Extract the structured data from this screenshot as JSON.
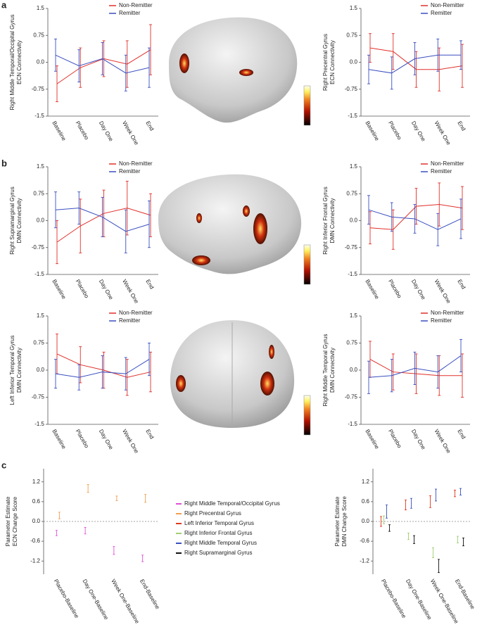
{
  "chart_data": [
    {
      "type": "line",
      "panel": "a",
      "ylabel": [
        "Right Middle Temporal/Occipital Gyrus",
        "ECN Connectivity"
      ],
      "categories": [
        "Baseline",
        "Placebo",
        "Day One",
        "Week One",
        "End"
      ],
      "ylim": [
        -1.5,
        1.5
      ],
      "yticks": [
        -1.5,
        -0.75,
        {
          "value": 0,
          "label": "0.0"
        },
        0.75,
        1.5
      ],
      "series": [
        {
          "name": "Non-Remitter",
          "color": "#e0302a",
          "values": [
            -0.6,
            -0.15,
            0.1,
            -0.05,
            0.35
          ],
          "errors": [
            0.5,
            0.55,
            0.5,
            0.65,
            0.7
          ]
        },
        {
          "name": "Remitter",
          "color": "#3a4fc0",
          "values": [
            0.2,
            -0.1,
            0.1,
            -0.3,
            -0.15
          ],
          "errors": [
            0.45,
            0.45,
            0.45,
            0.5,
            0.55
          ]
        }
      ]
    },
    {
      "type": "line",
      "ylabel": [
        "Right Precentral Gyrus",
        "ECN Connectivity"
      ],
      "categories": [
        "Baseline",
        "Placebo",
        "Day One",
        "Week One",
        "End"
      ],
      "ylim": [
        -1.5,
        1.5
      ],
      "yticks": [
        -1.5,
        -0.75,
        {
          "value": 0,
          "label": "0.0"
        },
        0.75,
        1.5
      ],
      "series": [
        {
          "name": "Non-Remitter",
          "color": "#e0302a",
          "values": [
            0.4,
            0.3,
            -0.2,
            -0.2,
            -0.1
          ],
          "errors": [
            0.4,
            0.5,
            0.5,
            0.6,
            0.6
          ]
        },
        {
          "name": "Remitter",
          "color": "#3a4fc0",
          "values": [
            -0.2,
            -0.3,
            0.1,
            0.2,
            0.2
          ],
          "errors": [
            0.4,
            0.45,
            0.45,
            0.45,
            0.4
          ]
        }
      ]
    },
    {
      "type": "line",
      "panel": "b",
      "ylabel": [
        "Right Supramarginal Gyrus",
        "DMN Connectivity"
      ],
      "categories": [
        "Baseline",
        "Placebo",
        "Day One",
        "Week One",
        "End"
      ],
      "ylim": [
        -1.5,
        1.5
      ],
      "yticks": [
        -1.5,
        -0.75,
        {
          "value": 0,
          "label": "0.0"
        },
        0.75,
        1.5
      ],
      "series": [
        {
          "name": "Non-Remitter",
          "color": "#e0302a",
          "values": [
            -0.6,
            -0.15,
            0.2,
            0.35,
            0.15
          ],
          "errors": [
            0.6,
            0.75,
            0.65,
            0.75,
            0.6
          ]
        },
        {
          "name": "Remitter",
          "color": "#3a4fc0",
          "values": [
            0.3,
            0.35,
            0.1,
            -0.3,
            -0.1
          ],
          "errors": [
            0.5,
            0.45,
            0.55,
            0.6,
            0.65
          ]
        }
      ]
    },
    {
      "type": "line",
      "ylabel": [
        "Right Inferior Frontal Gyrus",
        "DMN Connectivity"
      ],
      "categories": [
        "Baseline",
        "Placebo",
        "Day One",
        "Week One",
        "End"
      ],
      "ylim": [
        -1.5,
        1.5
      ],
      "yticks": [
        -1.5,
        -0.75,
        {
          "value": 0,
          "label": "0.0"
        },
        0.75,
        1.5
      ],
      "series": [
        {
          "name": "Non-Remitter",
          "color": "#e0302a",
          "values": [
            -0.2,
            -0.25,
            0.4,
            0.45,
            0.35
          ],
          "errors": [
            0.45,
            0.55,
            0.5,
            0.6,
            0.6
          ]
        },
        {
          "name": "Remitter",
          "color": "#3a4fc0",
          "values": [
            0.3,
            0.1,
            0.05,
            -0.25,
            0.05
          ],
          "errors": [
            0.4,
            0.4,
            0.4,
            0.45,
            0.55
          ]
        }
      ]
    },
    {
      "type": "line",
      "ylabel": [
        "Left Inferior Temporal Gyrus",
        "DMN Connectivity"
      ],
      "categories": [
        "Baseline",
        "Placebo",
        "Day One",
        "Week One",
        "End"
      ],
      "ylim": [
        -1.5,
        1.5
      ],
      "yticks": [
        -1.5,
        -0.75,
        {
          "value": 0,
          "label": "0.0"
        },
        0.75,
        1.5
      ],
      "series": [
        {
          "name": "Non-Remitter",
          "color": "#e0302a",
          "values": [
            0.45,
            0.15,
            0.0,
            -0.2,
            -0.05
          ],
          "errors": [
            0.55,
            0.5,
            0.5,
            0.5,
            0.55
          ]
        },
        {
          "name": "Remitter",
          "color": "#3a4fc0",
          "values": [
            -0.1,
            -0.2,
            -0.05,
            -0.1,
            0.3
          ],
          "errors": [
            0.4,
            0.35,
            0.45,
            0.45,
            0.45
          ]
        }
      ]
    },
    {
      "type": "line",
      "ylabel": [
        "Right Middle Temporal Gyrus",
        "DMN Connectivity"
      ],
      "categories": [
        "Baseline",
        "Placebo",
        "Day One",
        "Week One",
        "End"
      ],
      "ylim": [
        -1.5,
        1.5
      ],
      "yticks": [
        -1.5,
        -0.75,
        {
          "value": 0,
          "label": "0.0"
        },
        0.75,
        1.5
      ],
      "series": [
        {
          "name": "Non-Remitter",
          "color": "#e0302a",
          "values": [
            0.3,
            -0.05,
            -0.1,
            -0.15,
            -0.15
          ],
          "errors": [
            0.5,
            0.5,
            0.55,
            0.55,
            0.6
          ]
        },
        {
          "name": "Remitter",
          "color": "#3a4fc0",
          "values": [
            -0.2,
            -0.15,
            0.05,
            -0.05,
            0.4
          ],
          "errors": [
            0.45,
            0.45,
            0.45,
            0.45,
            0.45
          ]
        }
      ]
    },
    {
      "type": "errorbar",
      "panel": "c",
      "ylabel": [
        "Parameter Estimate",
        "ECN Change Score"
      ],
      "zero_line": true,
      "categories": [
        "Placebo-Baseline",
        "Day One-Baseline",
        "Week One-Baseline",
        "End-Baseline"
      ],
      "ylim": [
        -1.6,
        1.6
      ],
      "yticks": [
        -1.2,
        -0.6,
        {
          "value": 0,
          "label": "0.0"
        },
        0.6,
        1.2
      ],
      "series": [
        {
          "name": "Right Middle Temporal/Occipital Gyrus",
          "color": "#e050d8",
          "values": [
            -0.35,
            -0.28,
            -0.88,
            -1.12
          ],
          "errors": [
            0.08,
            0.1,
            0.12,
            0.1
          ]
        },
        {
          "name": "Right Precentral Gyrus",
          "color": "#f0a050",
          "values": [
            0.18,
            1.0,
            0.7,
            0.7
          ],
          "errors": [
            0.1,
            0.12,
            0.07,
            0.12
          ]
        }
      ]
    },
    {
      "type": "errorbar",
      "ylabel": [
        "Parameter Estimate",
        "DMN Change Score"
      ],
      "zero_line": true,
      "categories": [
        "Placebo-Baseline",
        "Day One-Baseline",
        "Week One-Baseline",
        "End-Baseline"
      ],
      "ylim": [
        -1.6,
        1.6
      ],
      "yticks": [
        -1.2,
        -0.6,
        {
          "value": 0,
          "label": "0.0"
        },
        0.6,
        1.2
      ],
      "series": [
        {
          "name": "Left Inferior Temporal Gyrus",
          "color": "#e03a20",
          "values": [
            0.0,
            0.5,
            0.6,
            0.85
          ],
          "errors": [
            0.15,
            0.15,
            0.18,
            0.1
          ]
        },
        {
          "name": "Right Inferior Frontal Gyrus",
          "color": "#a0d070",
          "values": [
            0.05,
            -0.45,
            -0.95,
            -0.55
          ],
          "errors": [
            0.12,
            0.1,
            0.15,
            0.1
          ]
        },
        {
          "name": "Right Middle Temporal Gyrus",
          "color": "#3a4fc0",
          "values": [
            0.3,
            0.55,
            0.8,
            0.9
          ],
          "errors": [
            0.2,
            0.15,
            0.18,
            0.1
          ]
        },
        {
          "name": "Right Supramarginal Gyrus",
          "color": "#111111",
          "values": [
            -0.2,
            -0.55,
            -1.35,
            -0.62
          ],
          "errors": [
            0.1,
            0.12,
            0.2,
            0.12
          ]
        }
      ]
    }
  ]
}
